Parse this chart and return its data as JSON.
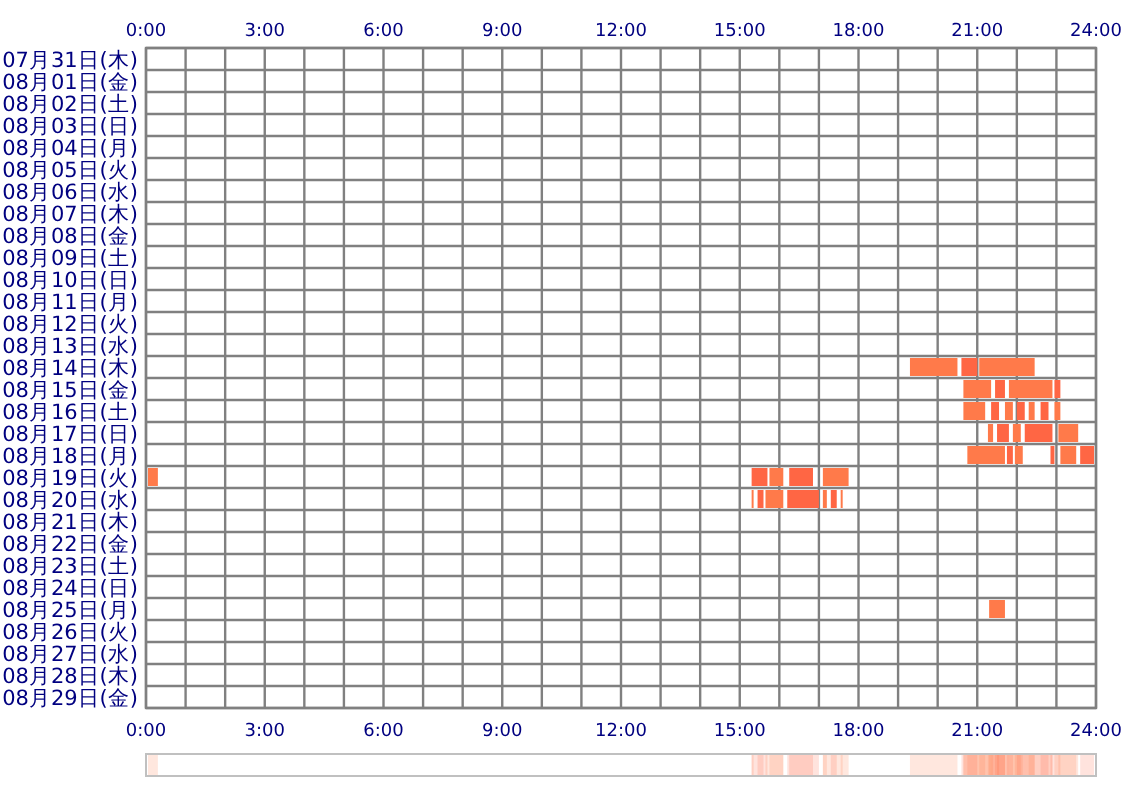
{
  "chart_data": {
    "type": "bar",
    "orientation": "horizontal",
    "categories": [
      "07月31日(木)",
      "08月01日(金)",
      "08月02日(土)",
      "08月03日(日)",
      "08月04日(月)",
      "08月05日(火)",
      "08月06日(水)",
      "08月07日(木)",
      "08月08日(金)",
      "08月09日(土)",
      "08月10日(日)",
      "08月11日(月)",
      "08月12日(火)",
      "08月13日(水)",
      "08月14日(木)",
      "08月15日(金)",
      "08月16日(土)",
      "08月17日(日)",
      "08月18日(月)",
      "08月19日(火)",
      "08月20日(水)",
      "08月21日(木)",
      "08月22日(金)",
      "08月23日(土)",
      "08月24日(日)",
      "08月25日(月)",
      "08月26日(火)",
      "08月27日(水)",
      "08月28日(木)",
      "08月29日(金)"
    ],
    "series": [
      {
        "color": "#ff7a4a",
        "base": [
          null,
          null,
          null,
          null,
          null,
          null,
          null,
          null,
          null,
          null,
          null,
          null,
          null,
          null,
          19.3,
          20.65,
          20.65,
          21.27,
          20.75,
          0.05,
          15.3,
          null,
          null,
          null,
          null,
          21.3,
          null,
          null,
          null,
          null
        ],
        "values": [
          null,
          null,
          null,
          null,
          null,
          null,
          null,
          null,
          null,
          null,
          null,
          null,
          null,
          null,
          1.2,
          0.7,
          0.55,
          0.13,
          0.95,
          0.25,
          0.05,
          null,
          null,
          null,
          null,
          0.4,
          null,
          null,
          null,
          null
        ]
      },
      {
        "color": "#ff6644",
        "base": [
          null,
          null,
          null,
          null,
          null,
          null,
          null,
          null,
          null,
          null,
          null,
          null,
          null,
          null,
          20.6,
          21.45,
          21.35,
          21.5,
          21.75,
          15.3,
          15.45,
          null,
          null,
          null,
          null,
          null,
          null,
          null,
          null,
          null
        ],
        "values": [
          null,
          null,
          null,
          null,
          null,
          null,
          null,
          null,
          null,
          null,
          null,
          null,
          null,
          null,
          0.4,
          0.25,
          0.2,
          0.3,
          0.15,
          0.4,
          0.15,
          null,
          null,
          null,
          null,
          null,
          null,
          null,
          null,
          null
        ]
      },
      {
        "color": "#ff7a4a",
        "base": [
          null,
          null,
          null,
          null,
          null,
          null,
          null,
          null,
          null,
          null,
          null,
          null,
          null,
          null,
          21.05,
          21.8,
          21.7,
          21.9,
          21.95,
          15.75,
          15.65,
          null,
          null,
          null,
          null,
          null,
          null,
          null,
          null,
          null
        ],
        "values": [
          null,
          null,
          null,
          null,
          null,
          null,
          null,
          null,
          null,
          null,
          null,
          null,
          null,
          null,
          1.4,
          1.1,
          0.2,
          0.2,
          0.2,
          0.35,
          0.45,
          null,
          null,
          null,
          null,
          null,
          null,
          null,
          null,
          null
        ]
      },
      {
        "color": "#ff6644",
        "base": [
          null,
          null,
          null,
          null,
          null,
          null,
          null,
          null,
          null,
          null,
          null,
          null,
          null,
          null,
          null,
          22.95,
          22.0,
          22.2,
          22.85,
          16.25,
          16.2,
          null,
          null,
          null,
          null,
          null,
          null,
          null,
          null,
          null
        ],
        "values": [
          null,
          null,
          null,
          null,
          null,
          null,
          null,
          null,
          null,
          null,
          null,
          null,
          null,
          null,
          null,
          0.15,
          0.2,
          0.7,
          0.1,
          0.6,
          0.8,
          null,
          null,
          null,
          null,
          null,
          null,
          null,
          null,
          null
        ]
      },
      {
        "color": "#ff7a4a",
        "base": [
          null,
          null,
          null,
          null,
          null,
          null,
          null,
          null,
          null,
          null,
          null,
          null,
          null,
          null,
          null,
          null,
          22.3,
          23.05,
          23.1,
          17.1,
          17.1,
          null,
          null,
          null,
          null,
          null,
          null,
          null,
          null,
          null
        ],
        "values": [
          null,
          null,
          null,
          null,
          null,
          null,
          null,
          null,
          null,
          null,
          null,
          null,
          null,
          null,
          null,
          null,
          0.15,
          0.5,
          0.4,
          0.65,
          0.1,
          null,
          null,
          null,
          null,
          null,
          null,
          null,
          null,
          null
        ]
      },
      {
        "color": "#ff6644",
        "base": [
          null,
          null,
          null,
          null,
          null,
          null,
          null,
          null,
          null,
          null,
          null,
          null,
          null,
          null,
          null,
          null,
          22.6,
          null,
          23.6,
          null,
          17.3,
          null,
          null,
          null,
          null,
          null,
          null,
          null,
          null,
          null
        ],
        "values": [
          null,
          null,
          null,
          null,
          null,
          null,
          null,
          null,
          null,
          null,
          null,
          null,
          null,
          null,
          null,
          null,
          0.2,
          null,
          0.35,
          null,
          0.15,
          null,
          null,
          null,
          null,
          null,
          null,
          null,
          null,
          null
        ]
      },
      {
        "color": "#ff7a4a",
        "base": [
          null,
          null,
          null,
          null,
          null,
          null,
          null,
          null,
          null,
          null,
          null,
          null,
          null,
          null,
          null,
          null,
          22.95,
          null,
          null,
          null,
          17.55,
          null,
          null,
          null,
          null,
          null,
          null,
          null,
          null,
          null
        ],
        "values": [
          null,
          null,
          null,
          null,
          null,
          null,
          null,
          null,
          null,
          null,
          null,
          null,
          null,
          null,
          null,
          null,
          0.15,
          null,
          null,
          null,
          0.05,
          null,
          null,
          null,
          null,
          null,
          null,
          null,
          null,
          null
        ]
      }
    ],
    "xlim": [
      0,
      24
    ],
    "xticks": [
      {
        "value": 0,
        "label": "0:00"
      },
      {
        "value": 1,
        "label": null
      },
      {
        "value": 2,
        "label": null
      },
      {
        "value": 3,
        "label": "3:00"
      },
      {
        "value": 4,
        "label": null
      },
      {
        "value": 5,
        "label": null
      },
      {
        "value": 6,
        "label": "6:00"
      },
      {
        "value": 7,
        "label": null
      },
      {
        "value": 8,
        "label": null
      },
      {
        "value": 9,
        "label": "9:00"
      },
      {
        "value": 10,
        "label": null
      },
      {
        "value": 11,
        "label": null
      },
      {
        "value": 12,
        "label": "12:00"
      },
      {
        "value": 13,
        "label": null
      },
      {
        "value": 14,
        "label": null
      },
      {
        "value": 15,
        "label": "15:00"
      },
      {
        "value": 16,
        "label": null
      },
      {
        "value": 17,
        "label": null
      },
      {
        "value": 18,
        "label": "18:00"
      },
      {
        "value": 19,
        "label": null
      },
      {
        "value": 20,
        "label": null
      },
      {
        "value": 21,
        "label": "21:00"
      },
      {
        "value": 22,
        "label": null
      },
      {
        "value": 23,
        "label": null
      },
      {
        "value": 24,
        "label": "24:00"
      }
    ],
    "x2lim": [
      0,
      24
    ],
    "x2ticks": [
      {
        "value": 0,
        "label": "0:00"
      },
      {
        "value": 1,
        "label": null
      },
      {
        "value": 2,
        "label": null
      },
      {
        "value": 3,
        "label": "3:00"
      },
      {
        "value": 4,
        "label": null
      },
      {
        "value": 5,
        "label": null
      },
      {
        "value": 6,
        "label": "6:00"
      },
      {
        "value": 7,
        "label": null
      },
      {
        "value": 8,
        "label": null
      },
      {
        "value": 9,
        "label": "9:00"
      },
      {
        "value": 10,
        "label": null
      },
      {
        "value": 11,
        "label": null
      },
      {
        "value": 12,
        "label": "12:00"
      },
      {
        "value": 13,
        "label": null
      },
      {
        "value": 14,
        "label": null
      },
      {
        "value": 15,
        "label": "15:00"
      },
      {
        "value": 16,
        "label": null
      },
      {
        "value": 17,
        "label": null
      },
      {
        "value": 18,
        "label": "18:00"
      },
      {
        "value": 19,
        "label": null
      },
      {
        "value": 20,
        "label": null
      },
      {
        "value": 21,
        "label": "21:00"
      },
      {
        "value": 22,
        "label": null
      },
      {
        "value": 23,
        "label": null
      },
      {
        "value": 24,
        "label": "24:00"
      }
    ],
    "grid": true
  }
}
